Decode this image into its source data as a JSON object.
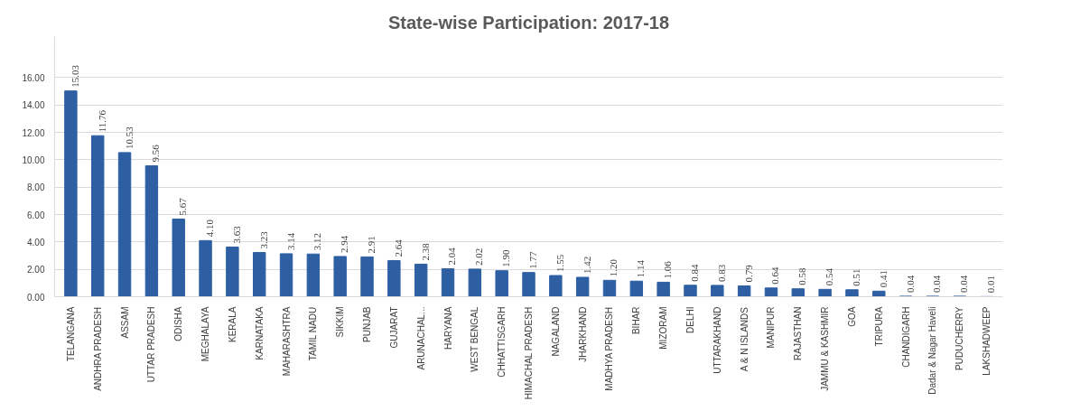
{
  "chart_data": {
    "type": "bar",
    "title": "State-wise Participation: 2017-18",
    "categories": [
      "TELANGANA",
      "ANDHRA PRADESH",
      "ASSAM",
      "UTTAR PRADESH",
      "ODISHA",
      "MEGHALAYA",
      "KERALA",
      "KARNATAKA",
      "MAHARASHTRA",
      "TAMIL NADU",
      "SIKKIM",
      "PUNJAB",
      "GUJARAT",
      "ARUNACHAL...",
      "HARYANA",
      "WEST BENGAL",
      "CHHATTISGARH",
      "HIMACHAL PRADESH",
      "NAGALAND",
      "JHARKHAND",
      "MADHYA PRADESH",
      "BIHAR",
      "MIZORAM",
      "DELHI",
      "UTTARAKHAND",
      "A & N ISLANDS",
      "MANIPUR",
      "RAJASTHAN",
      "JAMMU & KASHMIR",
      "GOA",
      "TRIPURA",
      "CHANDIGARH",
      "Dadar & Nagar Haveli",
      "PUDUCHERRY",
      "LAKSHADWEEP"
    ],
    "values": [
      15.03,
      11.76,
      10.53,
      9.56,
      5.67,
      4.1,
      3.63,
      3.23,
      3.14,
      3.12,
      2.94,
      2.91,
      2.64,
      2.38,
      2.04,
      2.02,
      1.9,
      1.77,
      1.55,
      1.42,
      1.2,
      1.14,
      1.06,
      0.84,
      0.83,
      0.79,
      0.64,
      0.58,
      0.54,
      0.51,
      0.41,
      0.04,
      0.04,
      0.04,
      0.01
    ],
    "value_labels": [
      "15.03",
      "11.76",
      "10.53",
      "9.56",
      "5.67",
      "4.10",
      "3.63",
      "3.23",
      "3.14",
      "3.12",
      "2.94",
      "2.91",
      "2.64",
      "2.38",
      "2.04",
      "2.02",
      "1.90",
      "1.77",
      "1.55",
      "1.42",
      "1.20",
      "1.14",
      "1.06",
      "0.84",
      "0.83",
      "0.79",
      "0.64",
      "0.58",
      "0.54",
      "0.51",
      "0.41",
      "0.04",
      "0.04",
      "0.04",
      "0.01"
    ],
    "color": "#2e5fa3",
    "ylim": [
      0,
      19
    ],
    "yticks": [
      {
        "value": 0,
        "label": "0.00"
      },
      {
        "value": 2,
        "label": "2.00"
      },
      {
        "value": 4,
        "label": "4.00"
      },
      {
        "value": 6,
        "label": "6.00"
      },
      {
        "value": 8,
        "label": "8.00"
      },
      {
        "value": 10,
        "label": "10.00"
      },
      {
        "value": 12,
        "label": "12.00"
      },
      {
        "value": 14,
        "label": "14.00"
      },
      {
        "value": 16,
        "label": "16.00"
      }
    ],
    "grid": "y"
  }
}
